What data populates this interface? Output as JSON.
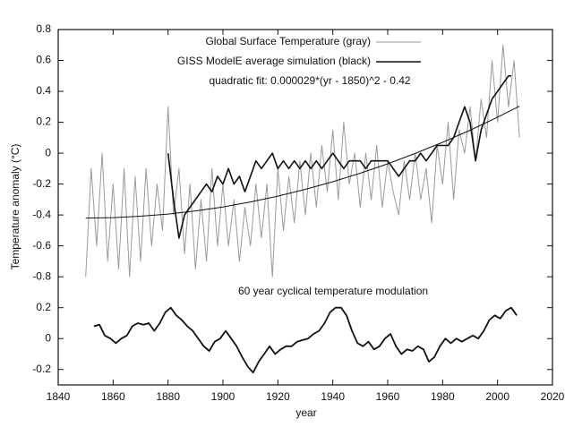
{
  "chart_data": {
    "type": "line",
    "xlabel": "year",
    "ylabel": "Temperature anomaly (°C)",
    "annotation": "60 year cyclical temperature modulation",
    "xlim": [
      1840,
      2020
    ],
    "xticks": [
      1840,
      1860,
      1880,
      1900,
      1920,
      1940,
      1960,
      1980,
      2000,
      2020
    ],
    "ylim": [
      -1.5,
      0.8
    ],
    "yticks": [
      -0.8,
      -0.6,
      -0.4,
      -0.2,
      0,
      0.2,
      0.4,
      0.6,
      0.8
    ],
    "y2lim": [
      -0.3,
      2.0
    ],
    "y2ticks": [
      -0.2,
      0,
      0.2
    ],
    "series": [
      {
        "name": "Global Surface Temperature (gray)",
        "color": "#9a9a9a",
        "width": 1,
        "x": [
          1850,
          1852,
          1854,
          1856,
          1858,
          1860,
          1862,
          1864,
          1866,
          1868,
          1870,
          1872,
          1874,
          1876,
          1878,
          1880,
          1882,
          1884,
          1886,
          1888,
          1890,
          1892,
          1894,
          1896,
          1898,
          1900,
          1902,
          1904,
          1906,
          1908,
          1910,
          1912,
          1914,
          1916,
          1918,
          1920,
          1922,
          1924,
          1926,
          1928,
          1930,
          1932,
          1934,
          1936,
          1938,
          1940,
          1942,
          1944,
          1946,
          1948,
          1950,
          1952,
          1954,
          1956,
          1958,
          1960,
          1962,
          1964,
          1966,
          1968,
          1970,
          1972,
          1974,
          1976,
          1978,
          1980,
          1982,
          1984,
          1986,
          1988,
          1990,
          1992,
          1994,
          1996,
          1998,
          2000,
          2002,
          2004,
          2006,
          2008
        ],
        "values": [
          -0.8,
          -0.1,
          -0.6,
          0.0,
          -0.7,
          -0.2,
          -0.75,
          -0.1,
          -0.8,
          -0.15,
          -0.7,
          -0.1,
          -0.6,
          -0.2,
          -0.5,
          0.3,
          -0.4,
          -0.1,
          -0.65,
          -0.2,
          -0.75,
          -0.3,
          -0.7,
          -0.1,
          -0.6,
          -0.2,
          -0.6,
          -0.3,
          -0.7,
          -0.35,
          -0.6,
          -0.2,
          -0.55,
          -0.2,
          -0.8,
          -0.1,
          -0.5,
          -0.15,
          -0.45,
          -0.05,
          -0.4,
          0.0,
          -0.35,
          0.05,
          -0.25,
          0.15,
          -0.3,
          0.2,
          -0.2,
          0.0,
          -0.35,
          0.0,
          -0.3,
          0.05,
          -0.35,
          -0.05,
          -0.25,
          -0.4,
          -0.05,
          -0.3,
          0.0,
          -0.3,
          -0.1,
          -0.45,
          0.05,
          -0.2,
          0.2,
          -0.3,
          0.15,
          0.0,
          0.3,
          -0.05,
          0.35,
          0.1,
          0.6,
          0.2,
          0.7,
          0.3,
          0.6,
          0.1
        ]
      },
      {
        "name": "GISS ModelE average simulation (black)",
        "color": "#111111",
        "width": 1.6,
        "x": [
          1880,
          1882,
          1884,
          1886,
          1888,
          1890,
          1892,
          1894,
          1896,
          1898,
          1900,
          1902,
          1904,
          1906,
          1908,
          1910,
          1912,
          1914,
          1916,
          1918,
          1920,
          1922,
          1924,
          1926,
          1928,
          1930,
          1932,
          1934,
          1936,
          1938,
          1940,
          1942,
          1944,
          1946,
          1948,
          1950,
          1952,
          1954,
          1956,
          1958,
          1960,
          1962,
          1964,
          1966,
          1968,
          1970,
          1972,
          1974,
          1976,
          1978,
          1980,
          1982,
          1984,
          1986,
          1988,
          1990,
          1992,
          1994,
          1996,
          1998,
          2000,
          2002,
          2004,
          2005
        ],
        "values": [
          0.0,
          -0.3,
          -0.55,
          -0.4,
          -0.35,
          -0.3,
          -0.25,
          -0.2,
          -0.25,
          -0.15,
          -0.2,
          -0.1,
          -0.2,
          -0.15,
          -0.25,
          -0.15,
          -0.05,
          -0.1,
          -0.05,
          0.0,
          -0.1,
          -0.05,
          -0.1,
          -0.05,
          -0.1,
          -0.05,
          -0.1,
          -0.05,
          -0.1,
          -0.05,
          0.0,
          -0.05,
          -0.1,
          -0.05,
          -0.05,
          -0.05,
          -0.1,
          -0.05,
          -0.05,
          -0.05,
          -0.05,
          -0.1,
          -0.15,
          -0.1,
          -0.05,
          -0.05,
          0.0,
          -0.05,
          0.0,
          0.05,
          0.05,
          0.05,
          0.1,
          0.2,
          0.3,
          0.2,
          -0.05,
          0.15,
          0.25,
          0.35,
          0.4,
          0.45,
          0.5,
          0.5
        ]
      },
      {
        "name": "quadratic fit: 0.000029*(yr - 1850)^2 - 0.42",
        "color": "#111111",
        "width": 1,
        "x": [
          1850,
          1860,
          1870,
          1880,
          1890,
          1900,
          1910,
          1920,
          1930,
          1940,
          1950,
          1960,
          1970,
          1980,
          1990,
          2000,
          2008
        ],
        "values": [
          -0.42,
          -0.417,
          -0.408,
          -0.394,
          -0.374,
          -0.348,
          -0.316,
          -0.278,
          -0.234,
          -0.185,
          -0.13,
          -0.069,
          -0.002,
          0.07,
          0.148,
          0.233,
          0.304
        ]
      },
      {
        "name": null,
        "color": "#111111",
        "width": 1.8,
        "axis": "y2",
        "x": [
          1853,
          1855,
          1857,
          1859,
          1861,
          1863,
          1865,
          1867,
          1869,
          1871,
          1873,
          1875,
          1877,
          1879,
          1881,
          1883,
          1885,
          1887,
          1889,
          1891,
          1893,
          1895,
          1897,
          1899,
          1901,
          1903,
          1905,
          1907,
          1909,
          1911,
          1913,
          1915,
          1917,
          1919,
          1921,
          1923,
          1925,
          1927,
          1929,
          1931,
          1933,
          1935,
          1937,
          1939,
          1941,
          1943,
          1945,
          1947,
          1949,
          1951,
          1953,
          1955,
          1957,
          1959,
          1961,
          1963,
          1965,
          1967,
          1969,
          1971,
          1973,
          1975,
          1977,
          1979,
          1981,
          1983,
          1985,
          1987,
          1989,
          1991,
          1993,
          1995,
          1997,
          1999,
          2001,
          2003,
          2005,
          2007
        ],
        "values": [
          0.08,
          0.09,
          0.02,
          0.0,
          -0.03,
          0.0,
          0.02,
          0.08,
          0.1,
          0.09,
          0.1,
          0.05,
          0.1,
          0.17,
          0.2,
          0.15,
          0.12,
          0.08,
          0.05,
          0.0,
          -0.05,
          -0.08,
          -0.02,
          0.0,
          0.05,
          0.0,
          -0.05,
          -0.12,
          -0.18,
          -0.22,
          -0.15,
          -0.1,
          -0.05,
          -0.1,
          -0.07,
          -0.05,
          -0.05,
          -0.02,
          -0.01,
          0.0,
          0.03,
          0.05,
          0.1,
          0.17,
          0.2,
          0.2,
          0.15,
          0.05,
          -0.03,
          -0.05,
          -0.02,
          -0.07,
          -0.05,
          0.0,
          0.03,
          -0.05,
          -0.1,
          -0.07,
          -0.08,
          -0.05,
          -0.07,
          -0.15,
          -0.12,
          -0.05,
          0.0,
          -0.03,
          0.0,
          -0.02,
          0.0,
          0.02,
          0.0,
          0.05,
          0.12,
          0.15,
          0.13,
          0.18,
          0.2,
          0.15
        ]
      }
    ]
  }
}
